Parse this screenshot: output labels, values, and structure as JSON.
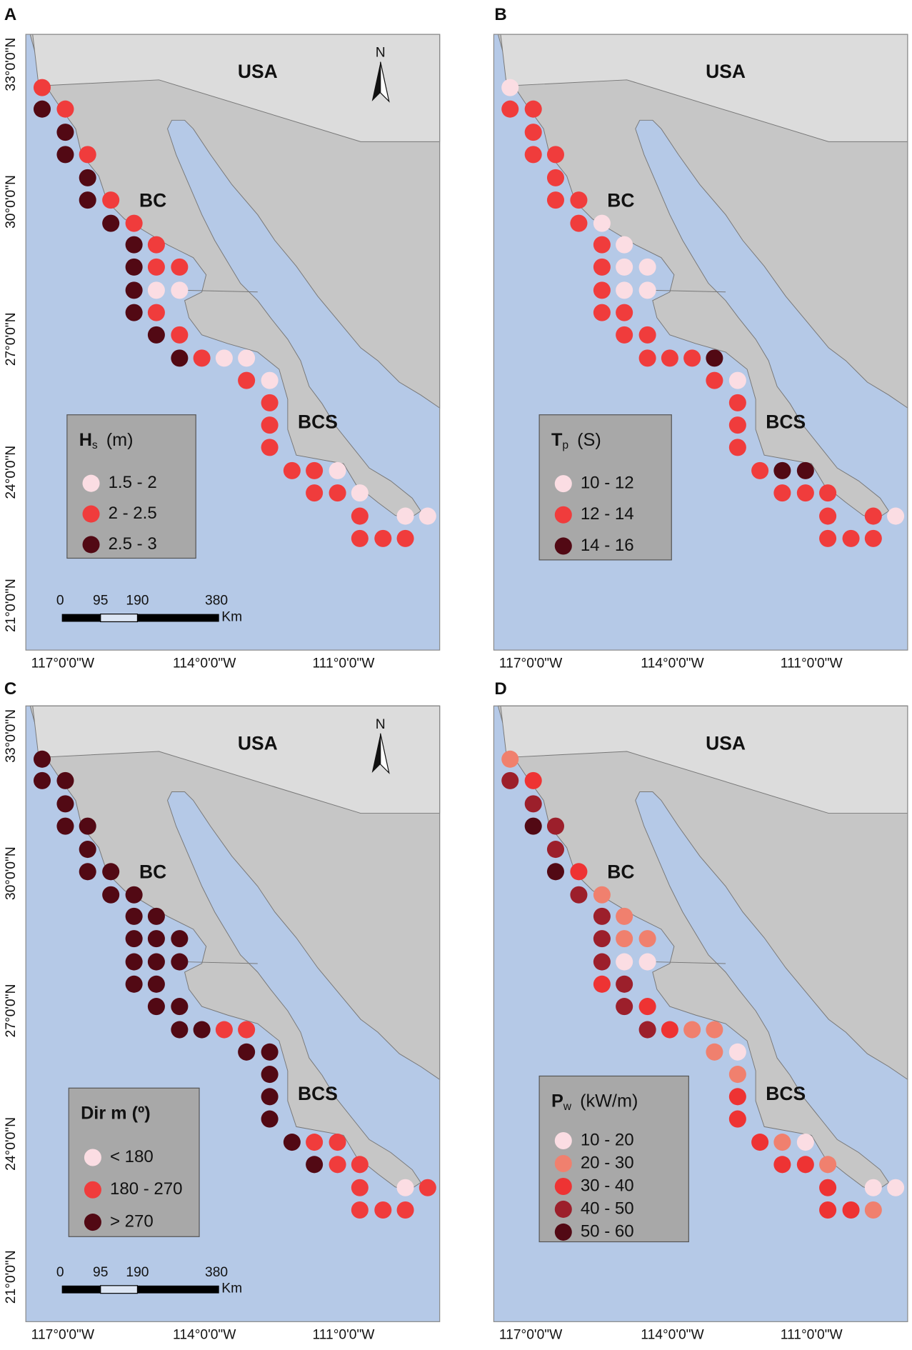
{
  "panels": [
    {
      "label": "A",
      "place_labels": [
        "USA",
        "BC",
        "BCS"
      ],
      "north": "N",
      "lat_labels": [
        "33°0'0\"N",
        "30°0'0\"N",
        "27°0'0\"N",
        "24°0'0\"N",
        "21°0'0\"N"
      ],
      "lon_labels": [
        "117°0'0\"W",
        "114°0'0\"W",
        "111°0'0\"W"
      ],
      "scale_bar": [
        "0",
        "95",
        "190",
        "380",
        "Km"
      ],
      "legend": {
        "title": {
          "text": "H",
          "subscript": "s",
          "unit": "(m)"
        },
        "items": [
          "1.5 - 2",
          "2 - 2.5",
          "2.5 - 3"
        ],
        "colors": [
          "#fbdde3",
          "#f03c3c",
          "#520914"
        ]
      },
      "points": [
        1,
        2,
        1,
        2,
        2,
        1,
        2,
        2,
        1,
        2,
        1,
        2,
        1,
        2,
        1,
        1,
        2,
        0,
        0,
        2,
        1,
        2,
        1,
        2,
        1,
        0,
        0,
        1,
        0,
        1,
        1,
        1,
        1,
        1,
        0,
        1,
        1,
        0,
        1,
        0,
        0,
        1,
        1,
        1
      ]
    },
    {
      "label": "B",
      "place_labels": [
        "USA",
        "BC",
        "BCS"
      ],
      "lon_labels": [
        "117°0'0\"W",
        "114°0'0\"W",
        "111°0'0\"W"
      ],
      "legend": {
        "title": {
          "text": "T",
          "subscript": "p",
          "unit": "(S)"
        },
        "items": [
          "10 - 12",
          "12 - 14",
          "14 - 16"
        ],
        "colors": [
          "#fbdde3",
          "#f03c3c",
          "#520914"
        ]
      },
      "points": [
        0,
        1,
        1,
        1,
        1,
        1,
        1,
        1,
        1,
        1,
        0,
        1,
        0,
        1,
        0,
        0,
        1,
        0,
        0,
        1,
        1,
        1,
        1,
        1,
        1,
        1,
        2,
        1,
        0,
        1,
        1,
        1,
        1,
        2,
        2,
        1,
        1,
        1,
        1,
        1,
        0,
        1,
        1,
        1
      ]
    },
    {
      "label": "C",
      "place_labels": [
        "USA",
        "BC",
        "BCS"
      ],
      "north": "N",
      "lat_labels": [
        "33°0'0\"N",
        "30°0'0\"N",
        "27°0'0\"N",
        "24°0'0\"N",
        "21°0'0\"N"
      ],
      "lon_labels": [
        "117°0'0\"W",
        "114°0'0\"W",
        "111°0'0\"W"
      ],
      "scale_bar": [
        "0",
        "95",
        "190",
        "380",
        "Km"
      ],
      "legend": {
        "title": {
          "text": "Dir m (º)"
        },
        "items": [
          "< 180",
          "180 - 270",
          "> 270"
        ],
        "colors": [
          "#fbdde3",
          "#f03c3c",
          "#520914"
        ]
      },
      "points": [
        2,
        2,
        2,
        2,
        2,
        2,
        2,
        2,
        2,
        2,
        2,
        2,
        2,
        2,
        2,
        2,
        2,
        2,
        2,
        2,
        2,
        2,
        2,
        2,
        2,
        1,
        1,
        2,
        2,
        2,
        2,
        2,
        2,
        1,
        1,
        2,
        1,
        1,
        1,
        0,
        1,
        1,
        1,
        1
      ]
    },
    {
      "label": "D",
      "place_labels": [
        "USA",
        "BC",
        "BCS"
      ],
      "lon_labels": [
        "117°0'0\"W",
        "114°0'0\"W",
        "111°0'0\"W"
      ],
      "legend": {
        "title": {
          "text": "P",
          "subscript": "w",
          "unit": "(kW/m)"
        },
        "items": [
          "10 - 20",
          "20 - 30",
          "30 - 40",
          "40 - 50",
          "50 - 60"
        ],
        "colors": [
          "#fbdde3",
          "#f0806e",
          "#ee3333",
          "#9c1f2b",
          "#520914"
        ]
      },
      "points": [
        1,
        3,
        2,
        3,
        4,
        3,
        3,
        4,
        2,
        3,
        1,
        3,
        1,
        3,
        1,
        1,
        3,
        0,
        0,
        2,
        3,
        3,
        2,
        3,
        2,
        1,
        1,
        1,
        0,
        1,
        2,
        2,
        2,
        1,
        0,
        2,
        2,
        1,
        2,
        0,
        0,
        2,
        2,
        1
      ]
    }
  ]
}
